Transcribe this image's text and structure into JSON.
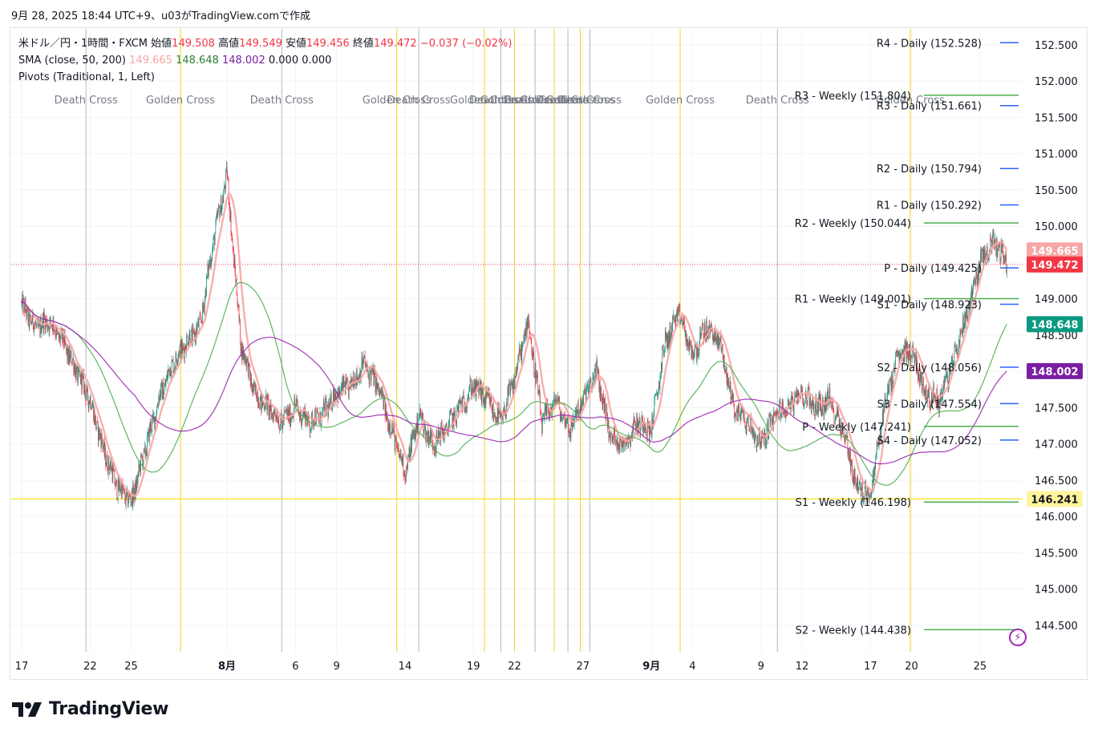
{
  "header": {
    "snapshot_text": "9月 28, 2025 18:44 UTC+9、u03がTradingView.comで作成"
  },
  "legend": {
    "symbol": "米ドル／円・1時間・FXCM",
    "open_label": "始値",
    "open": "149.508",
    "high_label": "高値",
    "high": "149.549",
    "low_label": "安値",
    "low": "149.456",
    "close_label": "終値",
    "close": "149.472",
    "change": "−0.037 (−0.02%)",
    "sma_label": "SMA (close, 50, 200)",
    "sma_values": [
      "149.665",
      "148.648",
      "148.002",
      "0.000",
      "0.000"
    ],
    "pivots_label": "Pivots (Traditional, 1, Left)"
  },
  "footer": {
    "brand": "TradingView"
  },
  "colors": {
    "up": "#089981",
    "down": "#f23645",
    "sma_fast": "#f7a5a5",
    "sma_50": "#4caf50",
    "sma_200": "#9c27b0",
    "golden": "#f7d21c",
    "death": "#b2b5be",
    "pivot_daily": "#2962ff",
    "pivot_weekly": "#4caf50",
    "hline": "#f5e942"
  },
  "chart_data": {
    "type": "candlestick",
    "symbol": "USDJPY",
    "timeframe": "1h",
    "ylim": [
      144.1,
      152.8
    ],
    "y_ticks": [
      "152.500",
      "152.000",
      "151.500",
      "151.000",
      "150.500",
      "150.000",
      "149.500",
      "149.000",
      "148.500",
      "148.000",
      "147.500",
      "147.000",
      "146.500",
      "146.000",
      "145.500",
      "145.000",
      "144.500"
    ],
    "x_labels": [
      {
        "label": "17",
        "day": 0,
        "bold": false
      },
      {
        "label": "22",
        "day": 5,
        "bold": false
      },
      {
        "label": "25",
        "day": 8,
        "bold": false
      },
      {
        "label": "8月",
        "day": 15,
        "bold": true
      },
      {
        "label": "6",
        "day": 20,
        "bold": false
      },
      {
        "label": "9",
        "day": 23,
        "bold": false
      },
      {
        "label": "14",
        "day": 28,
        "bold": false
      },
      {
        "label": "19",
        "day": 33,
        "bold": false
      },
      {
        "label": "22",
        "day": 36,
        "bold": false
      },
      {
        "label": "27",
        "day": 41,
        "bold": false
      },
      {
        "label": "9月",
        "day": 46,
        "bold": true
      },
      {
        "label": "4",
        "day": 49,
        "bold": false
      },
      {
        "label": "9",
        "day": 54,
        "bold": false
      },
      {
        "label": "12",
        "day": 57,
        "bold": false
      },
      {
        "label": "17",
        "day": 62,
        "bold": false
      },
      {
        "label": "20",
        "day": 65,
        "bold": false
      },
      {
        "label": "25",
        "day": 70,
        "bold": false
      }
    ],
    "price_path": [
      [
        0,
        148.9
      ],
      [
        1,
        148.6
      ],
      [
        2,
        148.7
      ],
      [
        3,
        148.4
      ],
      [
        4,
        148.0
      ],
      [
        5,
        147.6
      ],
      [
        6,
        146.9
      ],
      [
        7,
        146.4
      ],
      [
        8,
        146.2
      ],
      [
        9,
        146.9
      ],
      [
        10,
        147.6
      ],
      [
        11,
        148.1
      ],
      [
        12,
        148.4
      ],
      [
        13,
        148.6
      ],
      [
        14,
        149.8
      ],
      [
        15,
        150.7
      ],
      [
        16,
        148.4
      ],
      [
        17,
        147.7
      ],
      [
        18,
        147.5
      ],
      [
        19,
        147.3
      ],
      [
        20,
        147.5
      ],
      [
        21,
        147.3
      ],
      [
        22,
        147.4
      ],
      [
        23,
        147.7
      ],
      [
        24,
        147.8
      ],
      [
        25,
        148.1
      ],
      [
        26,
        147.8
      ],
      [
        27,
        147.2
      ],
      [
        28,
        146.6
      ],
      [
        29,
        147.4
      ],
      [
        30,
        147.0
      ],
      [
        31,
        147.2
      ],
      [
        32,
        147.5
      ],
      [
        33,
        147.8
      ],
      [
        34,
        147.6
      ],
      [
        35,
        147.3
      ],
      [
        36,
        147.9
      ],
      [
        37,
        148.7
      ],
      [
        38,
        147.3
      ],
      [
        39,
        147.6
      ],
      [
        40,
        147.2
      ],
      [
        41,
        147.6
      ],
      [
        42,
        148.0
      ],
      [
        43,
        147.1
      ],
      [
        44,
        147.0
      ],
      [
        45,
        147.3
      ],
      [
        46,
        147.2
      ],
      [
        47,
        148.4
      ],
      [
        48,
        148.8
      ],
      [
        49,
        148.2
      ],
      [
        50,
        148.6
      ],
      [
        51,
        148.4
      ],
      [
        52,
        147.5
      ],
      [
        53,
        147.3
      ],
      [
        54,
        147.0
      ],
      [
        55,
        147.4
      ],
      [
        56,
        147.5
      ],
      [
        57,
        147.7
      ],
      [
        58,
        147.5
      ],
      [
        59,
        147.6
      ],
      [
        60,
        147.2
      ],
      [
        61,
        146.4
      ],
      [
        62,
        146.3
      ],
      [
        63,
        147.5
      ],
      [
        64,
        148.2
      ],
      [
        65,
        148.3
      ],
      [
        66,
        147.7
      ],
      [
        67,
        147.6
      ],
      [
        68,
        148.1
      ],
      [
        69,
        148.8
      ],
      [
        70,
        149.5
      ],
      [
        71,
        149.8
      ],
      [
        72,
        149.47
      ]
    ],
    "sma_20_last": 149.665,
    "sma_50_last": 148.648,
    "sma_200_last": 148.002,
    "last_close": 149.472,
    "low_marker": 146.241,
    "cross_markers": [
      {
        "label": "Death Cross",
        "type": "death",
        "day": 4.7
      },
      {
        "label": "Golden Cross",
        "type": "golden",
        "day": 11.6
      },
      {
        "label": "Death Cross",
        "type": "death",
        "day": 19.0
      },
      {
        "label": "Golden Cross",
        "type": "golden",
        "day": 27.4
      },
      {
        "label": "Death Cross",
        "type": "death",
        "day": 29.0
      },
      {
        "label": "Golden Cross",
        "type": "golden",
        "day": 33.8
      },
      {
        "label": "Death Cross",
        "type": "death",
        "day": 35.0
      },
      {
        "label": "Golden Cross",
        "type": "golden",
        "day": 36.0
      },
      {
        "label": "Death Cross",
        "type": "death",
        "day": 37.5
      },
      {
        "label": "Golden Cross",
        "type": "golden",
        "day": 38.9
      },
      {
        "label": "Death Cross",
        "type": "death",
        "day": 39.9
      },
      {
        "label": "Golden Cross",
        "type": "golden",
        "day": 40.8
      },
      {
        "label": "Death Cross",
        "type": "death",
        "day": 41.5
      },
      {
        "label": "Golden Cross",
        "type": "golden",
        "day": 48.1
      },
      {
        "label": "Death Cross",
        "type": "death",
        "day": 55.2
      },
      {
        "label": "Golden Cross",
        "type": "golden",
        "day": 64.9
      }
    ],
    "pivots_daily": [
      {
        "label": "R4 - Daily (152.528)",
        "value": 152.528
      },
      {
        "label": "R3 - Daily (151.661)",
        "value": 151.661
      },
      {
        "label": "R2 - Daily (150.794)",
        "value": 150.794
      },
      {
        "label": "R1 - Daily (150.292)",
        "value": 150.292
      },
      {
        "label": "P - Daily (149.425)",
        "value": 149.425
      },
      {
        "label": "S1 - Daily (148.923)",
        "value": 148.923
      },
      {
        "label": "S2 - Daily (148.056)",
        "value": 148.056
      },
      {
        "label": "S3 - Daily (147.554)",
        "value": 147.554
      },
      {
        "label": "S4 - Daily (147.052)",
        "value": 147.052
      }
    ],
    "pivots_weekly": [
      {
        "label": "R3 - Weekly (151.804)",
        "value": 151.804
      },
      {
        "label": "R2 - Weekly (150.044)",
        "value": 150.044
      },
      {
        "label": "R1 - Weekly (149.001)",
        "value": 149.001
      },
      {
        "label": "P - Weekly (147.241)",
        "value": 147.241
      },
      {
        "label": "S1 - Weekly (146.198)",
        "value": 146.198
      },
      {
        "label": "S2 - Weekly (144.438)",
        "value": 144.438
      }
    ],
    "price_badges": [
      {
        "text": "149.665",
        "value": 149.665,
        "bg": "#f7a5a5",
        "fg": "#ffffff"
      },
      {
        "text": "149.472",
        "value": 149.472,
        "bg": "#f23645",
        "fg": "#ffffff"
      },
      {
        "text": "148.648",
        "value": 148.648,
        "bg": "#089981",
        "fg": "#ffffff"
      },
      {
        "text": "148.002",
        "value": 148.002,
        "bg": "#7b1fa2",
        "fg": "#ffffff"
      },
      {
        "text": "146.241",
        "value": 146.241,
        "bg": "#fff59d",
        "fg": "#131722"
      }
    ]
  }
}
